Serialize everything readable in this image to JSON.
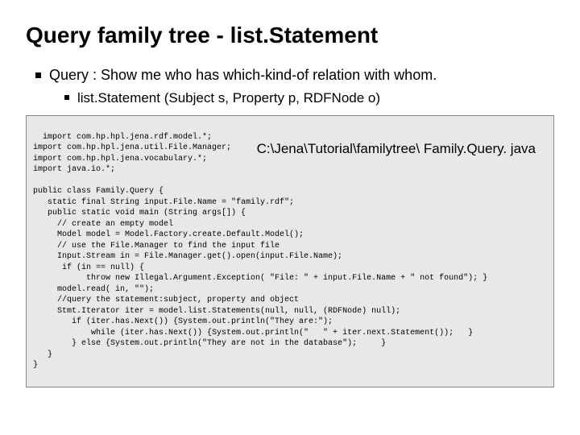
{
  "title": "Query family tree - list.Statement",
  "bullets": {
    "level1_text": "Query : Show me who has which-kind-of relation with whom.",
    "level2_text": "list.Statement (Subject s, Property p, RDFNode o)"
  },
  "path_label": "C:\\Jena\\Tutorial\\familytree\\\nFamily.Query. java",
  "code_text": "import com.hp.hpl.jena.rdf.model.*;\nimport com.hp.hpl.jena.util.File.Manager;\nimport com.hp.hpl.jena.vocabulary.*;\nimport java.io.*;\n\npublic class Family.Query {\n   static final String input.File.Name = \"family.rdf\";\n   public static void main (String args[]) {\n     // create an empty model\n     Model model = Model.Factory.create.Default.Model();\n     // use the File.Manager to find the input file\n     Input.Stream in = File.Manager.get().open(input.File.Name);\n      if (in == null) {\n           throw new Illegal.Argument.Exception( \"File: \" + input.File.Name + \" not found\"); }\n     model.read( in, \"\");\n     //query the statement:subject, property and object\n     Stmt.Iterator iter = model.list.Statements(null, null, (RDFNode) null);\n        if (iter.has.Next()) {System.out.println(\"They are:\");\n            while (iter.has.Next()) {System.out.println(\"   \" + iter.next.Statement());   }\n        } else {System.out.println(\"They are not in the database\");     }\n   }\n}",
  "styling": {
    "slide_width": 720,
    "slide_height": 540,
    "background_color": "#ffffff",
    "title_fontsize": 28,
    "title_color": "#000000",
    "title_weight": "bold",
    "bullet_l1_fontsize": 18,
    "bullet_l2_fontsize": 17,
    "bullet_color": "#000000",
    "bullet_marker_size": 7,
    "bullet_marker_size_sm": 6,
    "bullet_marker_color": "#000000",
    "code_background": "#e8e8e8",
    "code_border_color": "#888888",
    "code_fontsize": 10,
    "code_font": "Courier New",
    "path_label_fontsize": 17,
    "path_label_color": "#000000"
  }
}
